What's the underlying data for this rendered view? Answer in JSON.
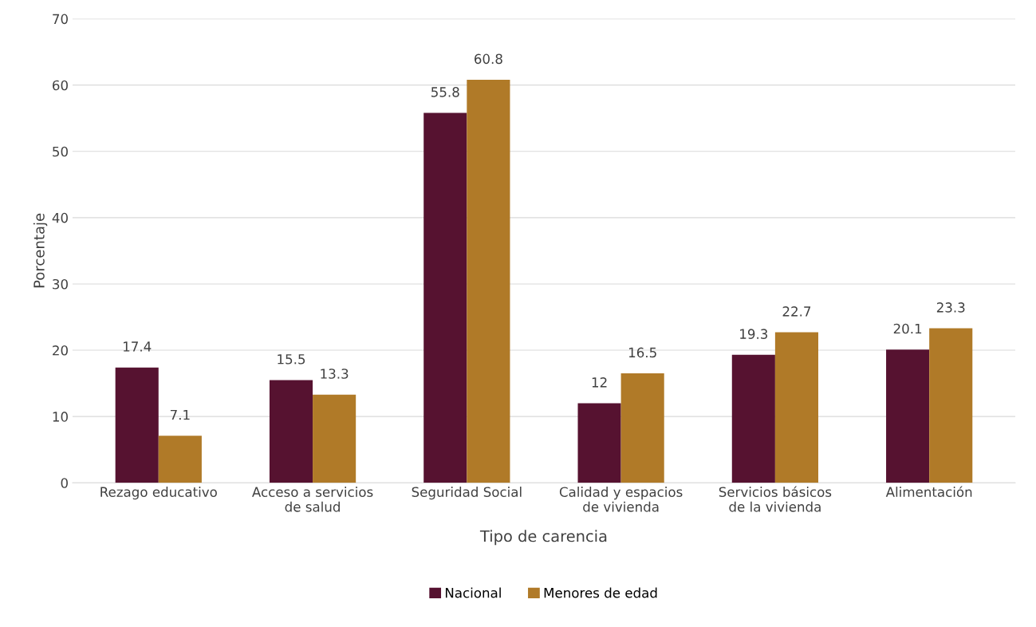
{
  "chart_data": {
    "type": "bar",
    "xlabel": "Tipo de carencia",
    "ylabel": "Porcentaje",
    "categories": [
      "Rezago educativo",
      "Acceso a servicios\nde salud",
      "Seguridad Social",
      "Calidad y espacios\nde vivienda",
      "Servicios básicos\nde la vivienda",
      "Alimentación"
    ],
    "series": [
      {
        "name": "Nacional",
        "color": "#561230",
        "values": [
          17.4,
          15.5,
          55.8,
          12,
          19.3,
          20.1
        ]
      },
      {
        "name": "Menores de edad",
        "color": "#b07a28",
        "values": [
          7.1,
          13.3,
          60.8,
          16.5,
          22.7,
          23.3
        ]
      }
    ],
    "ylim": [
      0,
      70
    ],
    "yticks": [
      0,
      10,
      20,
      30,
      40,
      50,
      60,
      70
    ],
    "grid": "y",
    "legend": "bottom",
    "data_labels": true
  }
}
